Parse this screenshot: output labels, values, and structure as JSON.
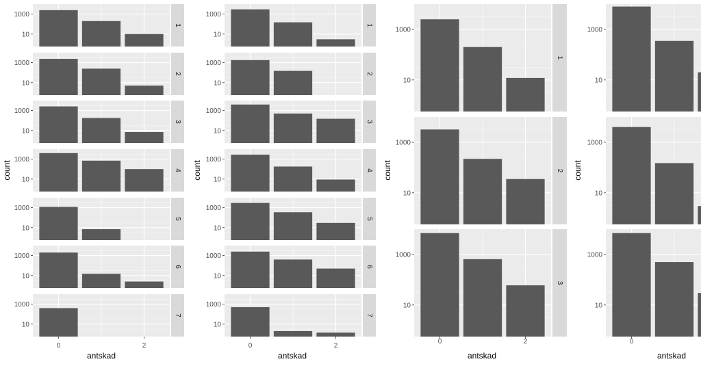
{
  "colors": {
    "panel_bg": "#ebebeb",
    "grid_major": "#ffffff",
    "bar_fill": "#595959",
    "strip_bg": "#d9d9d9",
    "strip_text": "#1a1a1a",
    "tick_text": "#4d4d4d"
  },
  "chart_data": [
    {
      "type": "bar",
      "facet": "rows",
      "x": [
        0,
        1,
        2
      ],
      "x_ticks": [
        "0",
        "2"
      ],
      "y_scale": "log10",
      "y_ticks": [
        "10",
        "1000"
      ],
      "xlabel": "antskad",
      "ylabel": "count",
      "panels": [
        {
          "label": "1",
          "values": [
            2500,
            200,
            10
          ]
        },
        {
          "label": "2",
          "values": [
            2400,
            250,
            5
          ]
        },
        {
          "label": "3",
          "values": [
            2600,
            180,
            7
          ]
        },
        {
          "label": "4",
          "values": [
            4000,
            700,
            100
          ]
        },
        {
          "label": "5",
          "values": [
            1200,
            7,
            0
          ]
        },
        {
          "label": "6",
          "values": [
            2000,
            15,
            2.5
          ]
        },
        {
          "label": "7",
          "values": [
            400,
            0,
            0
          ]
        }
      ]
    },
    {
      "type": "bar",
      "facet": "rows",
      "x": [
        0,
        1,
        2
      ],
      "x_ticks": [
        "0",
        "2"
      ],
      "y_scale": "log10",
      "y_ticks": [
        "10",
        "1000"
      ],
      "xlabel": "antskad",
      "ylabel": "count",
      "panels": [
        {
          "label": "1",
          "values": [
            3000,
            150,
            3
          ]
        },
        {
          "label": "2",
          "values": [
            1800,
            150,
            0
          ]
        },
        {
          "label": "3",
          "values": [
            4000,
            500,
            150
          ]
        },
        {
          "label": "4",
          "values": [
            2800,
            180,
            9
          ]
        },
        {
          "label": "5",
          "values": [
            3000,
            350,
            30
          ]
        },
        {
          "label": "6",
          "values": [
            2500,
            400,
            50
          ]
        },
        {
          "label": "7",
          "values": [
            500,
            2,
            1.4
          ]
        }
      ]
    },
    {
      "type": "bar",
      "facet": "rows",
      "x": [
        0,
        1,
        2
      ],
      "x_ticks": [
        "0",
        "2"
      ],
      "y_scale": "log10",
      "y_ticks": [
        "10",
        "1000"
      ],
      "xlabel": "antskad",
      "ylabel": "count",
      "panels": [
        {
          "label": "1",
          "values": [
            2500,
            200,
            12
          ]
        },
        {
          "label": "2",
          "values": [
            3200,
            220,
            35
          ]
        },
        {
          "label": "3",
          "values": [
            7000,
            650,
            60
          ]
        }
      ]
    },
    {
      "type": "bar",
      "facet": "rows",
      "x": [
        0,
        1,
        2
      ],
      "x_ticks": [
        "0"
      ],
      "y_scale": "log10",
      "y_ticks": [
        "10",
        "1000"
      ],
      "xlabel": "antskad",
      "ylabel": "count",
      "panels": [
        {
          "label": "",
          "values": [
            8000,
            350,
            20
          ]
        },
        {
          "label": "",
          "values": [
            4000,
            150,
            3
          ]
        },
        {
          "label": "",
          "values": [
            7000,
            500,
            30
          ]
        }
      ]
    }
  ]
}
